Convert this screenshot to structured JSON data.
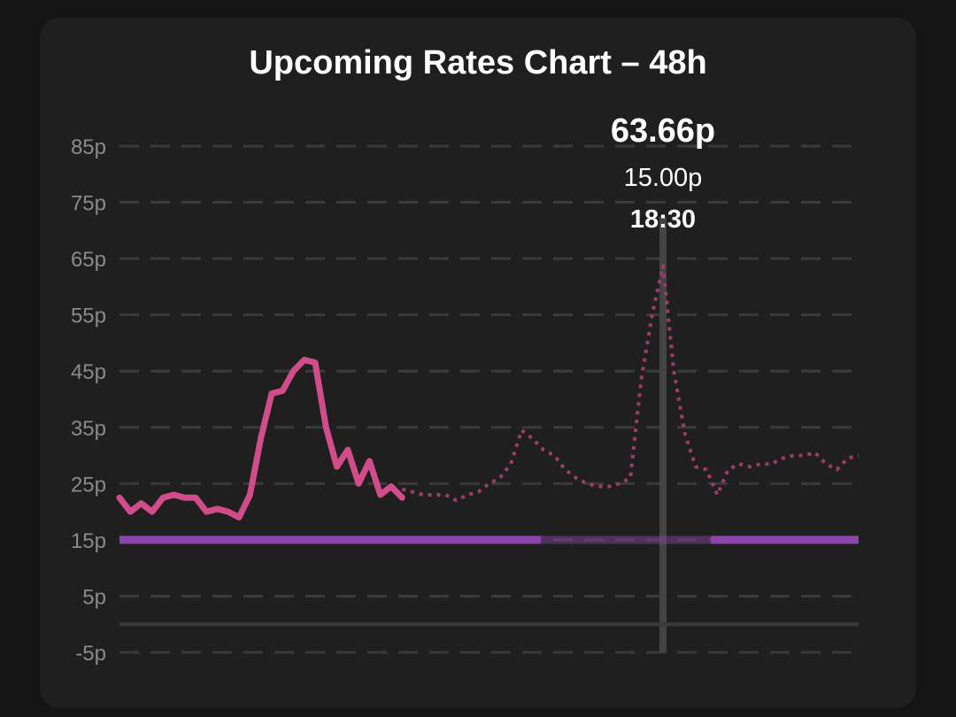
{
  "chart_data": {
    "type": "line",
    "title": "Upcoming Rates Chart – 48h",
    "y_ticks": [
      "85p",
      "75p",
      "65p",
      "55p",
      "45p",
      "35p",
      "25p",
      "15p",
      "5p",
      "-5p"
    ],
    "ylim": [
      -5,
      85
    ],
    "grid": true,
    "series": [
      {
        "style": "solid",
        "color": "#d14d8a",
        "values": [
          22.5,
          20,
          21.5,
          20,
          22.5,
          23,
          22.5,
          22.5,
          20,
          20.5,
          20,
          19,
          23,
          33,
          41,
          41.5,
          45,
          47,
          46.5,
          35,
          28,
          31,
          25,
          29,
          23,
          24.5,
          22.5
        ]
      },
      {
        "style": "dotted",
        "color": "#9b3d6b",
        "values": [
          24,
          23.5,
          23,
          23,
          23,
          22,
          23,
          23.5,
          25,
          26,
          28.5,
          34.5,
          33,
          31,
          30,
          27.5,
          26,
          25,
          24.5,
          24.5,
          25,
          26,
          43.5,
          55,
          63.7,
          45,
          34,
          28,
          27.5,
          23,
          27.5,
          28.5,
          28,
          28.5,
          28.5,
          29.5,
          30,
          30,
          30.5,
          28.5,
          27.5,
          29.5,
          30
        ]
      }
    ],
    "reference_line": {
      "value": 15,
      "color": "#8e44ad"
    },
    "tooltip": {
      "rate": "63.66p",
      "reference": "15.00p",
      "time": "18:30"
    }
  }
}
